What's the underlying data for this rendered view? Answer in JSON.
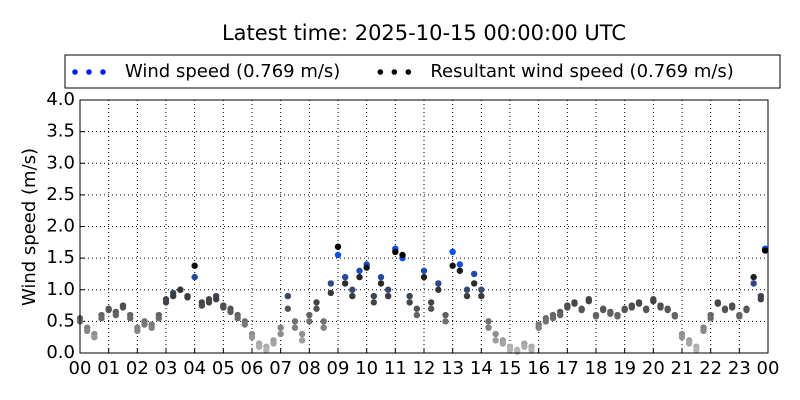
{
  "chart_data": {
    "type": "scatter",
    "title": "Latest time: 2025-10-15 00:00:00 UTC",
    "y_label": "Wind speed (m/s)",
    "x": [
      0,
      0.25,
      0.5,
      0.75,
      1,
      1.25,
      1.5,
      1.75,
      2,
      2.25,
      2.5,
      2.75,
      3,
      3.25,
      3.5,
      3.75,
      4,
      4.25,
      4.5,
      4.75,
      5,
      5.25,
      5.5,
      5.75,
      6,
      6.25,
      6.5,
      6.75,
      7,
      7.25,
      7.5,
      7.75,
      8,
      8.25,
      8.5,
      8.75,
      9,
      9.25,
      9.5,
      9.75,
      10,
      10.25,
      10.5,
      10.75,
      11,
      11.25,
      11.5,
      11.75,
      12,
      12.25,
      12.5,
      12.75,
      13,
      13.25,
      13.5,
      13.75,
      14,
      14.25,
      14.5,
      14.75,
      15,
      15.25,
      15.5,
      15.75,
      16,
      16.25,
      16.5,
      16.75,
      17,
      17.25,
      17.5,
      17.75,
      18,
      18.25,
      18.5,
      18.75,
      19,
      19.25,
      19.5,
      19.75,
      20,
      20.25,
      20.5,
      20.75,
      21,
      21.25,
      21.5,
      21.75,
      22,
      22.25,
      22.5,
      22.75,
      23,
      23.25,
      23.5,
      23.75,
      23.9
    ],
    "series": [
      {
        "name": "Wind speed (0.769 m/s)",
        "color": "#0022ee",
        "colormap": [
          "#bbbbbb",
          "#444444",
          "#0050ff"
        ],
        "values": [
          0.55,
          0.4,
          0.3,
          0.6,
          0.7,
          0.65,
          0.75,
          0.6,
          0.4,
          0.5,
          0.45,
          0.6,
          0.85,
          0.95,
          1.0,
          0.9,
          1.2,
          0.8,
          0.85,
          0.9,
          0.75,
          0.7,
          0.6,
          0.5,
          0.3,
          0.15,
          0.1,
          0.2,
          0.4,
          0.9,
          0.5,
          0.3,
          0.6,
          0.8,
          0.5,
          1.1,
          1.55,
          1.2,
          1.0,
          1.3,
          1.4,
          0.9,
          1.2,
          1.0,
          1.65,
          1.5,
          0.9,
          0.7,
          1.3,
          0.8,
          1.1,
          0.6,
          1.6,
          1.4,
          1.0,
          1.25,
          1.0,
          0.5,
          0.3,
          0.2,
          0.1,
          0.05,
          0.15,
          0.1,
          0.45,
          0.55,
          0.6,
          0.65,
          0.75,
          0.8,
          0.7,
          0.85,
          0.6,
          0.7,
          0.65,
          0.6,
          0.7,
          0.75,
          0.8,
          0.7,
          0.85,
          0.75,
          0.7,
          0.6,
          0.3,
          0.2,
          0.1,
          0.4,
          0.6,
          0.8,
          0.7,
          0.75,
          0.6,
          0.7,
          1.1,
          0.9,
          1.65
        ]
      },
      {
        "name": "Resultant wind speed (0.769 m/s)",
        "color": "#000000",
        "colormap": [
          "#bbbbbb",
          "#444444",
          "#000000"
        ],
        "values": [
          0.5,
          0.35,
          0.25,
          0.55,
          0.68,
          0.6,
          0.72,
          0.55,
          0.35,
          0.45,
          0.4,
          0.55,
          0.8,
          0.9,
          1.0,
          0.88,
          1.38,
          0.75,
          0.8,
          0.85,
          0.72,
          0.65,
          0.55,
          0.45,
          0.25,
          0.1,
          0.05,
          0.15,
          0.3,
          0.7,
          0.4,
          0.2,
          0.5,
          0.7,
          0.4,
          0.95,
          1.68,
          1.1,
          0.9,
          1.2,
          1.35,
          0.8,
          1.1,
          0.9,
          1.6,
          1.55,
          0.8,
          0.6,
          1.2,
          0.7,
          1.0,
          0.5,
          1.38,
          1.3,
          0.9,
          1.1,
          0.9,
          0.4,
          0.2,
          0.15,
          0.05,
          0.02,
          0.1,
          0.05,
          0.4,
          0.5,
          0.55,
          0.6,
          0.72,
          0.78,
          0.68,
          0.82,
          0.58,
          0.68,
          0.62,
          0.58,
          0.68,
          0.72,
          0.78,
          0.68,
          0.82,
          0.72,
          0.68,
          0.58,
          0.25,
          0.15,
          0.05,
          0.35,
          0.55,
          0.78,
          0.68,
          0.72,
          0.58,
          0.68,
          1.2,
          0.85,
          1.62
        ]
      }
    ],
    "xlim": [
      0,
      24
    ],
    "xticks": [
      {
        "value": 0,
        "label": "00"
      },
      {
        "value": 1,
        "label": "01"
      },
      {
        "value": 2,
        "label": "02"
      },
      {
        "value": 3,
        "label": "03"
      },
      {
        "value": 4,
        "label": "04"
      },
      {
        "value": 5,
        "label": "05"
      },
      {
        "value": 6,
        "label": "06"
      },
      {
        "value": 7,
        "label": "07"
      },
      {
        "value": 8,
        "label": "08"
      },
      {
        "value": 9,
        "label": "09"
      },
      {
        "value": 10,
        "label": "10"
      },
      {
        "value": 11,
        "label": "11"
      },
      {
        "value": 12,
        "label": "12"
      },
      {
        "value": 13,
        "label": "13"
      },
      {
        "value": 14,
        "label": "14"
      },
      {
        "value": 15,
        "label": "15"
      },
      {
        "value": 16,
        "label": "16"
      },
      {
        "value": 17,
        "label": "17"
      },
      {
        "value": 18,
        "label": "18"
      },
      {
        "value": 19,
        "label": "19"
      },
      {
        "value": 20,
        "label": "20"
      },
      {
        "value": 21,
        "label": "21"
      },
      {
        "value": 22,
        "label": "22"
      },
      {
        "value": 23,
        "label": "23"
      },
      {
        "value": 24,
        "label": "00"
      }
    ],
    "ylim": [
      0,
      4
    ],
    "yticks": [
      {
        "value": 0,
        "label": "0.0"
      },
      {
        "value": 0.5,
        "label": "0.5"
      },
      {
        "value": 1,
        "label": "1.0"
      },
      {
        "value": 1.5,
        "label": "1.5"
      },
      {
        "value": 2,
        "label": "2.0"
      },
      {
        "value": 2.5,
        "label": "2.5"
      },
      {
        "value": 3,
        "label": "3.0"
      },
      {
        "value": 3.5,
        "label": "3.5"
      },
      {
        "value": 4,
        "label": "4.0"
      }
    ],
    "grid": true,
    "legend": "top"
  }
}
